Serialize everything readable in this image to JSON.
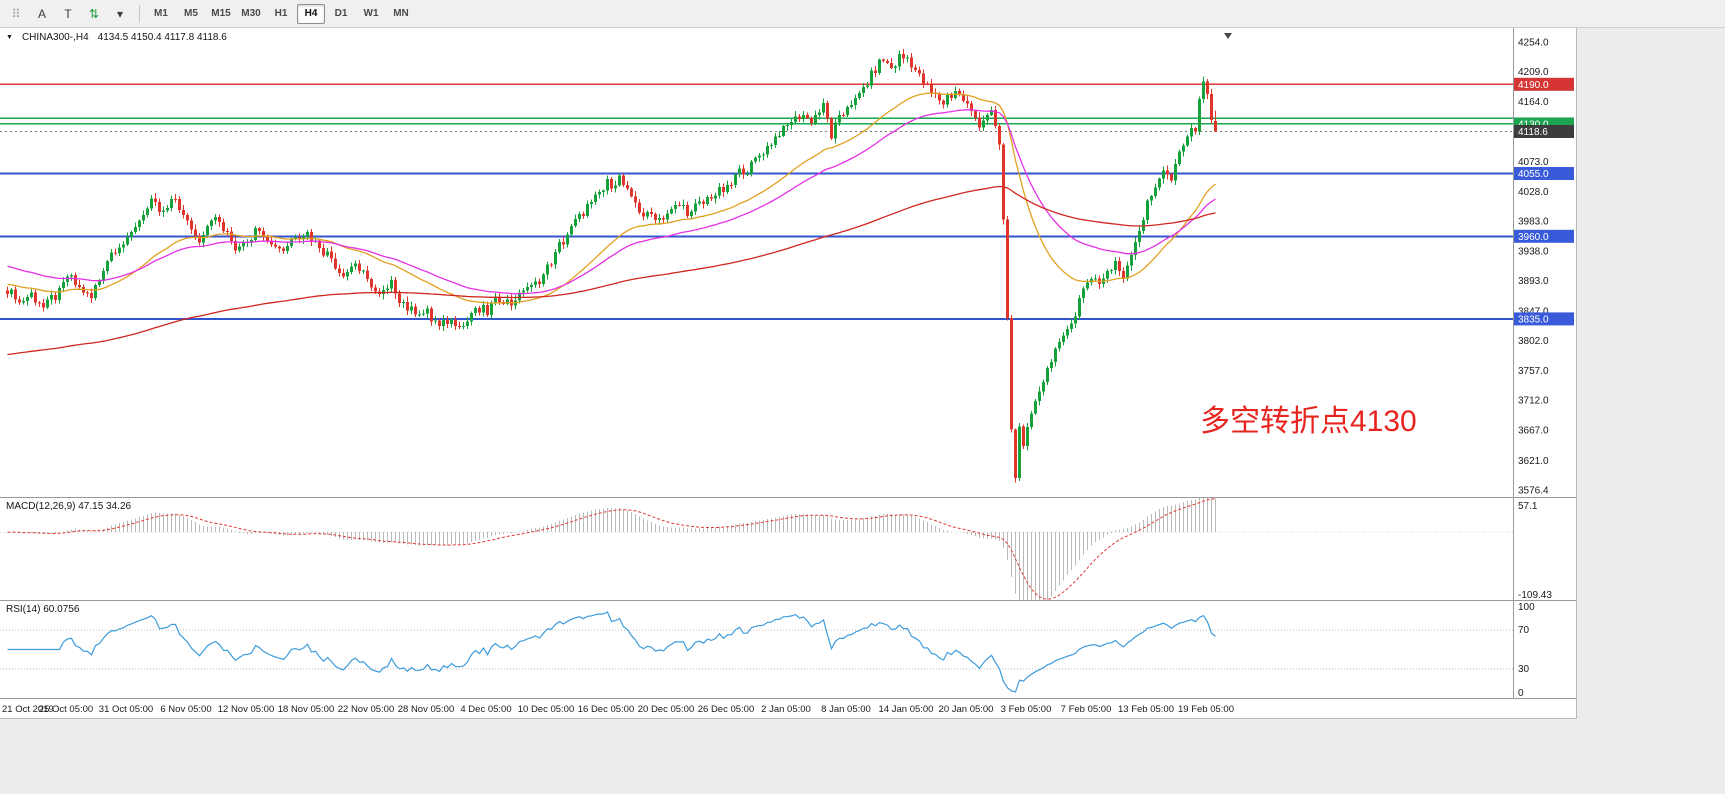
{
  "toolbar": {
    "tools": [
      {
        "name": "toolbar-drag-handle",
        "glyph": "⠿",
        "color": "#9a9a9a"
      },
      {
        "name": "cursor-tool-button",
        "glyph": "A"
      },
      {
        "name": "text-label-tool-button",
        "glyph": "T"
      },
      {
        "name": "cycle-symbols-button",
        "glyph": "⇅",
        "color": "#1d9e42"
      },
      {
        "name": "tool-options-caret-button",
        "glyph": "▾"
      }
    ],
    "timeframes": [
      {
        "label": "M1",
        "active": false
      },
      {
        "label": "M5",
        "active": false
      },
      {
        "label": "M15",
        "active": false
      },
      {
        "label": "M30",
        "active": false
      },
      {
        "label": "H1",
        "active": false
      },
      {
        "label": "H4",
        "active": true
      },
      {
        "label": "D1",
        "active": false
      },
      {
        "label": "W1",
        "active": false
      },
      {
        "label": "MN",
        "active": false
      }
    ]
  },
  "chart": {
    "type": "candlestick",
    "title": {
      "collapse_glyph": "▼",
      "symbol_period": "CHINA300-,H4",
      "ohlc": "4134.5 4150.4 4117.8 4118.6"
    },
    "annotation": {
      "text": "多空转折点4130",
      "color": "#e8241f"
    },
    "scale": {
      "top": 4275.2,
      "bottom": 3565.5
    },
    "price_ticks": [
      "4254.0",
      "4209.0",
      "4164.0",
      "4119.0",
      "4073.0",
      "4028.0",
      "3983.0",
      "3938.0",
      "3893.0",
      "3847.0",
      "3802.0",
      "3757.0",
      "3712.0",
      "3667.0",
      "3621.0",
      "3576.4"
    ],
    "dates": [
      "21 Oct 2019",
      "25 Oct 05:00",
      "31 Oct 05:00",
      "6 Nov 05:00",
      "12 Nov 05:00",
      "18 Nov 05:00",
      "22 Nov 05:00",
      "28 Nov 05:00",
      "4 Dec 05:00",
      "10 Dec 05:00",
      "16 Dec 05:00",
      "20 Dec 05:00",
      "26 Dec 05:00",
      "2 Jan 05:00",
      "8 Jan 05:00",
      "14 Jan 05:00",
      "20 Jan 05:00",
      "3 Feb 05:00",
      "7 Feb 05:00",
      "13 Feb 05:00",
      "19 Feb 05:00"
    ],
    "hlines": [
      {
        "price": 4190,
        "color": "#e03636",
        "width": 1.5
      },
      {
        "price": 4139,
        "color": "#17a84d",
        "width": 1.5
      },
      {
        "price": 4130,
        "color": "#17a84d",
        "width": 1.5
      },
      {
        "price": 4055,
        "color": "#3354cf",
        "width": 2
      },
      {
        "price": 3960,
        "color": "#3354cf",
        "width": 2
      },
      {
        "price": 3835,
        "color": "#3354cf",
        "width": 2
      }
    ],
    "badges": [
      {
        "price": 4190,
        "text": "4190.0",
        "bg": "#d53535"
      },
      {
        "price": 4130,
        "text": "4130.0",
        "bg": "#1ea351"
      },
      {
        "price": 4118.6,
        "text": "4118.6",
        "bg": "#3d3d3d"
      },
      {
        "price": 4055,
        "text": "4055.0",
        "bg": "#3a5bd9"
      },
      {
        "price": 3960,
        "text": "3960.0",
        "bg": "#3a5bd9"
      },
      {
        "price": 3835,
        "text": "3835.0",
        "bg": "#3a5bd9"
      }
    ],
    "current_price": {
      "value": 4118.6,
      "line_color": "#777777"
    },
    "candles": {
      "count": 303,
      "up": "#15a23b",
      "down": "#e0352b",
      "last": [
        4134.5,
        4150.4,
        4117.8,
        4118.6
      ],
      "anchors": [
        [
          0,
          3882
        ],
        [
          3,
          3862
        ],
        [
          6,
          3872
        ],
        [
          9,
          3855
        ],
        [
          12,
          3868
        ],
        [
          15,
          3898
        ],
        [
          18,
          3880
        ],
        [
          21,
          3866
        ],
        [
          24,
          3912
        ],
        [
          27,
          3942
        ],
        [
          30,
          3955
        ],
        [
          33,
          3988
        ],
        [
          36,
          4008
        ],
        [
          39,
          3996
        ],
        [
          42,
          4015
        ],
        [
          45,
          3978
        ],
        [
          48,
          3955
        ],
        [
          51,
          3990
        ],
        [
          54,
          3972
        ],
        [
          57,
          3944
        ],
        [
          60,
          3958
        ],
        [
          63,
          3974
        ],
        [
          66,
          3950
        ],
        [
          69,
          3942
        ],
        [
          72,
          3964
        ],
        [
          75,
          3966
        ],
        [
          78,
          3948
        ],
        [
          81,
          3925
        ],
        [
          84,
          3902
        ],
        [
          87,
          3920
        ],
        [
          90,
          3892
        ],
        [
          93,
          3870
        ],
        [
          96,
          3885
        ],
        [
          99,
          3858
        ],
        [
          102,
          3845
        ],
        [
          105,
          3842
        ],
        [
          108,
          3822
        ],
        [
          111,
          3834
        ],
        [
          114,
          3828
        ],
        [
          117,
          3848
        ],
        [
          120,
          3846
        ],
        [
          123,
          3868
        ],
        [
          126,
          3858
        ],
        [
          129,
          3878
        ],
        [
          132,
          3888
        ],
        [
          135,
          3912
        ],
        [
          138,
          3945
        ],
        [
          141,
          3972
        ],
        [
          144,
          3998
        ],
        [
          147,
          4015
        ],
        [
          150,
          4038
        ],
        [
          153,
          4048
        ],
        [
          156,
          4015
        ],
        [
          159,
          3995
        ],
        [
          162,
          3988
        ],
        [
          165,
          3992
        ],
        [
          168,
          4008
        ],
        [
          171,
          3996
        ],
        [
          174,
          4012
        ],
        [
          177,
          4022
        ],
        [
          180,
          4032
        ],
        [
          183,
          4055
        ],
        [
          186,
          4068
        ],
        [
          189,
          4088
        ],
        [
          192,
          4108
        ],
        [
          195,
          4128
        ],
        [
          198,
          4145
        ],
        [
          201,
          4138
        ],
        [
          204,
          4155
        ],
        [
          206,
          4112
        ],
        [
          208,
          4135
        ],
        [
          210,
          4158
        ],
        [
          213,
          4172
        ],
        [
          216,
          4205
        ],
        [
          219,
          4228
        ],
        [
          221,
          4215
        ],
        [
          223,
          4230
        ],
        [
          225,
          4232
        ],
        [
          227,
          4210
        ],
        [
          229,
          4192
        ],
        [
          231,
          4178
        ],
        [
          234,
          4165
        ],
        [
          237,
          4182
        ],
        [
          240,
          4158
        ],
        [
          243,
          4132
        ],
        [
          246,
          4148
        ],
        [
          248,
          4098
        ],
        [
          249,
          3985
        ],
        [
          250,
          3835
        ],
        [
          251,
          3668
        ],
        [
          252,
          3592
        ],
        [
          253,
          3675
        ],
        [
          254,
          3640
        ],
        [
          255,
          3668
        ],
        [
          257,
          3712
        ],
        [
          259,
          3745
        ],
        [
          261,
          3780
        ],
        [
          263,
          3795
        ],
        [
          265,
          3820
        ],
        [
          267,
          3845
        ],
        [
          269,
          3878
        ],
        [
          271,
          3902
        ],
        [
          273,
          3890
        ],
        [
          275,
          3908
        ],
        [
          277,
          3915
        ],
        [
          279,
          3898
        ],
        [
          281,
          3935
        ],
        [
          283,
          3970
        ],
        [
          285,
          4008
        ],
        [
          287,
          4038
        ],
        [
          289,
          4062
        ],
        [
          291,
          4045
        ],
        [
          293,
          4085
        ],
        [
          295,
          4112
        ],
        [
          297,
          4128
        ],
        [
          298,
          4168
        ],
        [
          299,
          4192
        ],
        [
          300,
          4180
        ],
        [
          301,
          4142
        ],
        [
          302,
          4118
        ]
      ]
    },
    "mas": [
      {
        "period": 34,
        "color": "#e2a020",
        "init": 3888
      },
      {
        "period": 55,
        "color": "#e531e5",
        "init": 3916
      },
      {
        "period": 200,
        "color": "#d0261f",
        "init": 3780
      }
    ],
    "macd": {
      "label": "MACD(12,26,9) 47.15 34.26",
      "fast": 12,
      "slow": 26,
      "signal": 9,
      "hist_color": "#b9b9b9",
      "signal_color": "#e03a34",
      "axis_labels": [
        "57.1",
        "-109.43"
      ]
    },
    "rsi": {
      "label": "RSI(14) 60.0756",
      "period": 14,
      "color": "#3e9bdc",
      "levels": [
        70,
        30
      ],
      "axis_labels": [
        "100",
        "70",
        "30",
        "0"
      ]
    }
  }
}
